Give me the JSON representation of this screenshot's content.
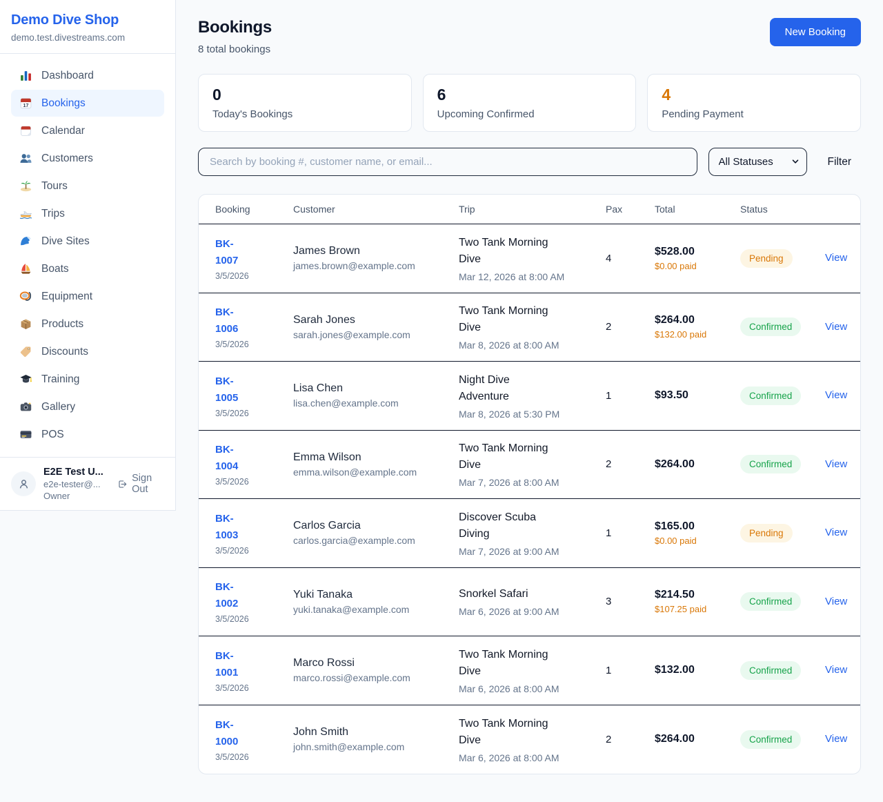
{
  "sidebar": {
    "brand": {
      "name": "Demo Dive Shop",
      "domain": "demo.test.divestreams.com"
    },
    "items": [
      {
        "label": "Dashboard",
        "icon": "bar-chart-icon"
      },
      {
        "label": "Bookings",
        "icon": "calendar-icon",
        "active": true
      },
      {
        "label": "Calendar",
        "icon": "tear-off-calendar-icon"
      },
      {
        "label": "Customers",
        "icon": "people-icon"
      },
      {
        "label": "Tours",
        "icon": "island-icon"
      },
      {
        "label": "Trips",
        "icon": "speedboat-icon"
      },
      {
        "label": "Dive Sites",
        "icon": "wave-icon"
      },
      {
        "label": "Boats",
        "icon": "sailboat-icon"
      },
      {
        "label": "Equipment",
        "icon": "diving-mask-icon"
      },
      {
        "label": "Products",
        "icon": "package-icon"
      },
      {
        "label": "Discounts",
        "icon": "tag-icon"
      },
      {
        "label": "Training",
        "icon": "graduation-cap-icon"
      },
      {
        "label": "Gallery",
        "icon": "camera-icon"
      },
      {
        "label": "POS",
        "icon": "credit-card-icon"
      }
    ],
    "user": {
      "name": "E2E Test U...",
      "email": "e2e-tester@...",
      "role": "Owner",
      "sign_out_label": "Sign Out"
    }
  },
  "header": {
    "title": "Bookings",
    "subtitle": "8 total bookings",
    "new_booking_label": "New Booking"
  },
  "stats": [
    {
      "value": "0",
      "label": "Today's Bookings",
      "accent": "#0f172a"
    },
    {
      "value": "6",
      "label": "Upcoming Confirmed",
      "accent": "#0f172a"
    },
    {
      "value": "4",
      "label": "Pending Payment",
      "accent": "#d97706"
    }
  ],
  "filters": {
    "search_placeholder": "Search by booking #, customer name, or email...",
    "status_selected": "All Statuses",
    "filter_label": "Filter"
  },
  "table": {
    "columns": [
      "Booking",
      "Customer",
      "Trip",
      "Pax",
      "Total",
      "Status"
    ],
    "view_label": "View",
    "rows": [
      {
        "id": "BK-1007",
        "date": "3/5/2026",
        "customer": "James Brown",
        "email": "james.brown@example.com",
        "trip": "Two Tank Morning Dive",
        "trip_datetime": "Mar 12, 2026 at 8:00 AM",
        "pax": "4",
        "total": "$528.00",
        "paid": "$0.00 paid",
        "status": "Pending"
      },
      {
        "id": "BK-1006",
        "date": "3/5/2026",
        "customer": "Sarah Jones",
        "email": "sarah.jones@example.com",
        "trip": "Two Tank Morning Dive",
        "trip_datetime": "Mar 8, 2026 at 8:00 AM",
        "pax": "2",
        "total": "$264.00",
        "paid": "$132.00 paid",
        "status": "Confirmed"
      },
      {
        "id": "BK-1005",
        "date": "3/5/2026",
        "customer": "Lisa Chen",
        "email": "lisa.chen@example.com",
        "trip": "Night Dive Adventure",
        "trip_datetime": "Mar 8, 2026 at 5:30 PM",
        "pax": "1",
        "total": "$93.50",
        "paid": "",
        "status": "Confirmed"
      },
      {
        "id": "BK-1004",
        "date": "3/5/2026",
        "customer": "Emma Wilson",
        "email": "emma.wilson@example.com",
        "trip": "Two Tank Morning Dive",
        "trip_datetime": "Mar 7, 2026 at 8:00 AM",
        "pax": "2",
        "total": "$264.00",
        "paid": "",
        "status": "Confirmed"
      },
      {
        "id": "BK-1003",
        "date": "3/5/2026",
        "customer": "Carlos Garcia",
        "email": "carlos.garcia@example.com",
        "trip": "Discover Scuba Diving",
        "trip_datetime": "Mar 7, 2026 at 9:00 AM",
        "pax": "1",
        "total": "$165.00",
        "paid": "$0.00 paid",
        "status": "Pending"
      },
      {
        "id": "BK-1002",
        "date": "3/5/2026",
        "customer": "Yuki Tanaka",
        "email": "yuki.tanaka@example.com",
        "trip": "Snorkel Safari",
        "trip_datetime": "Mar 6, 2026 at 9:00 AM",
        "pax": "3",
        "total": "$214.50",
        "paid": "$107.25 paid",
        "status": "Confirmed"
      },
      {
        "id": "BK-1001",
        "date": "3/5/2026",
        "customer": "Marco Rossi",
        "email": "marco.rossi@example.com",
        "trip": "Two Tank Morning Dive",
        "trip_datetime": "Mar 6, 2026 at 8:00 AM",
        "pax": "1",
        "total": "$132.00",
        "paid": "",
        "status": "Confirmed"
      },
      {
        "id": "BK-1000",
        "date": "3/5/2026",
        "customer": "John Smith",
        "email": "john.smith@example.com",
        "trip": "Two Tank Morning Dive",
        "trip_datetime": "Mar 6, 2026 at 8:00 AM",
        "pax": "2",
        "total": "$264.00",
        "paid": "",
        "status": "Confirmed"
      }
    ]
  },
  "status_colors": {
    "Pending": {
      "bg": "#fdf5e3",
      "text": "#d97706"
    },
    "Confirmed": {
      "bg": "#e9f9ef",
      "text": "#16a34a"
    }
  },
  "colors": {
    "accent_blue": "#2563eb",
    "amber": "#d97706",
    "green": "#16a34a"
  }
}
